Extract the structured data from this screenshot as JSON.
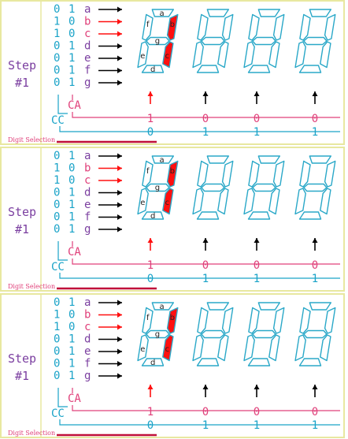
{
  "colors": {
    "border": "#e8e8a0",
    "cyan": "#1aa3c8",
    "pink": "#e0407a",
    "red": "#ff1010",
    "purple": "#7b3fa0",
    "black": "#000000",
    "dark_red": "#c0103a",
    "segment_outline": "#2aa8c8"
  },
  "panels": [
    {
      "step_word": "Step",
      "step_num": "#1",
      "rows": [
        {
          "c0": "0",
          "c1": "1",
          "seg": "a",
          "active": false
        },
        {
          "c0": "1",
          "c1": "0",
          "seg": "b",
          "active": true
        },
        {
          "c0": "1",
          "c1": "0",
          "seg": "c",
          "active": true
        },
        {
          "c0": "0",
          "c1": "1",
          "seg": "d",
          "active": false
        },
        {
          "c0": "0",
          "c1": "1",
          "seg": "e",
          "active": false
        },
        {
          "c0": "0",
          "c1": "1",
          "seg": "f",
          "active": false
        },
        {
          "c0": "0",
          "c1": "1",
          "seg": "g",
          "active": false
        }
      ],
      "ca_label": "CA",
      "cc_label": "CC",
      "digit_selection": "Digit Selection",
      "ca_values": [
        "1",
        "0",
        "0",
        "0"
      ],
      "cc_values": [
        "0",
        "1",
        "1",
        "1"
      ],
      "segment_labels": [
        "a",
        "b",
        "c",
        "d",
        "e",
        "f",
        "g"
      ],
      "lit_segments": [
        "b",
        "c"
      ]
    },
    {
      "step_word": "Step",
      "step_num": "#1",
      "rows": [
        {
          "c0": "0",
          "c1": "1",
          "seg": "a",
          "active": false
        },
        {
          "c0": "1",
          "c1": "0",
          "seg": "b",
          "active": true
        },
        {
          "c0": "1",
          "c1": "0",
          "seg": "c",
          "active": true
        },
        {
          "c0": "0",
          "c1": "1",
          "seg": "d",
          "active": false
        },
        {
          "c0": "0",
          "c1": "1",
          "seg": "e",
          "active": false
        },
        {
          "c0": "0",
          "c1": "1",
          "seg": "f",
          "active": false
        },
        {
          "c0": "0",
          "c1": "1",
          "seg": "g",
          "active": false
        }
      ],
      "ca_label": "CA",
      "cc_label": "CC",
      "digit_selection": "Digit Selection",
      "ca_values": [
        "1",
        "0",
        "0",
        "0"
      ],
      "cc_values": [
        "0",
        "1",
        "1",
        "1"
      ],
      "segment_labels": [
        "a",
        "b",
        "c",
        "d",
        "e",
        "f",
        "g"
      ],
      "lit_segments": [
        "b",
        "c"
      ]
    },
    {
      "step_word": "Step",
      "step_num": "#1",
      "rows": [
        {
          "c0": "0",
          "c1": "1",
          "seg": "a",
          "active": false
        },
        {
          "c0": "1",
          "c1": "0",
          "seg": "b",
          "active": true
        },
        {
          "c0": "1",
          "c1": "0",
          "seg": "c",
          "active": true
        },
        {
          "c0": "0",
          "c1": "1",
          "seg": "d",
          "active": false
        },
        {
          "c0": "0",
          "c1": "1",
          "seg": "e",
          "active": false
        },
        {
          "c0": "0",
          "c1": "1",
          "seg": "f",
          "active": false
        },
        {
          "c0": "0",
          "c1": "1",
          "seg": "g",
          "active": false
        }
      ],
      "ca_label": "CA",
      "cc_label": "CC",
      "digit_selection": "Digit Selection",
      "ca_values": [
        "1",
        "0",
        "0",
        "0"
      ],
      "cc_values": [
        "0",
        "1",
        "1",
        "1"
      ],
      "segment_labels": [
        "a",
        "b",
        "c",
        "d",
        "e",
        "f",
        "g"
      ],
      "lit_segments": [
        "b",
        "c"
      ]
    }
  ]
}
